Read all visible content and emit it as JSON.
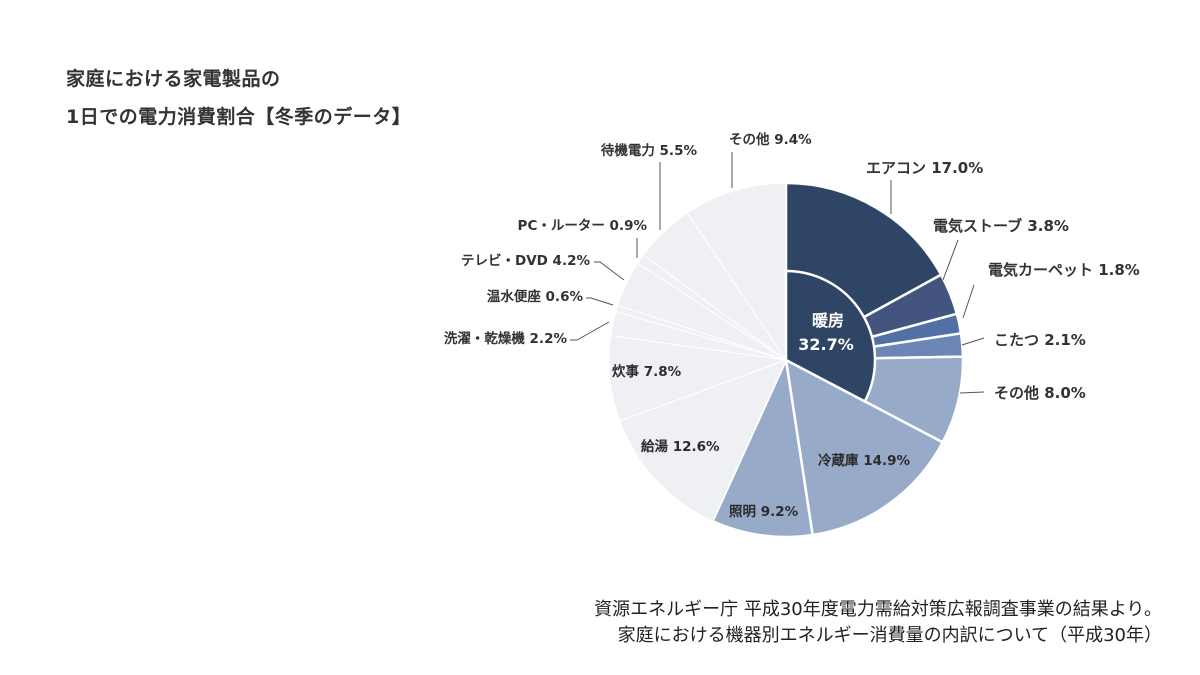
{
  "title": {
    "line1": "家庭における家電製品の",
    "line2": "1日での電力消費割合【冬季のデータ】"
  },
  "source": {
    "line1": "資源エネルギー庁 平成30年度電力需給対策広報調査事業の結果より。",
    "line2": "家庭における機器別エネルギー消費量の内訳について（平成30年）"
  },
  "colors": {
    "aircon": "#2f4566",
    "stove": "#43557f",
    "carpet": "#5370a4",
    "kotatsu": "#6c87b5",
    "heating_other": "#97aac8",
    "mid": "#97abc9",
    "light": "#eef0f4",
    "center": "#2f4566",
    "leader": "#555555"
  },
  "chart_data": {
    "type": "pie",
    "title": "家庭における家電製品の1日での電力消費割合【冬季のデータ】",
    "unit": "%",
    "center_group": {
      "label": "暖房",
      "value": 32.7
    },
    "categories": [
      "エアコン",
      "電気ストーブ",
      "電気カーペット",
      "こたつ",
      "その他",
      "冷蔵庫",
      "照明",
      "給湯",
      "炊事",
      "洗濯・乾燥機",
      "温水便座",
      "テレビ・DVD",
      "PC・ルーター",
      "待機電力",
      "その他"
    ],
    "values": [
      17.0,
      3.8,
      1.8,
      2.1,
      8.0,
      14.9,
      9.2,
      12.6,
      7.8,
      2.2,
      0.6,
      4.2,
      0.9,
      5.5,
      9.4
    ],
    "groups": [
      "暖房",
      "暖房",
      "暖房",
      "暖房",
      "暖房",
      "",
      "",
      "",
      "",
      "",
      "",
      "",
      "",
      "",
      ""
    ],
    "labels": [
      "エアコン 17.0%",
      "電気ストーブ 3.8%",
      "電気カーペット 1.8%",
      "こたつ 2.1%",
      "その他 8.0%",
      "冷蔵庫 14.9%",
      "照明 9.2%",
      "給湯 12.6%",
      "炊事 7.8%",
      "洗濯・乾燥機 2.2%",
      "温水便座 0.6%",
      "テレビ・DVD 4.2%",
      "PC・ルーター 0.9%",
      "待機電力 5.5%",
      "その他 9.4%"
    ],
    "center_label": {
      "name": "暖房",
      "value": "32.7%"
    },
    "source": "資源エネルギー庁 平成30年度電力需給対策広報調査事業の結果より。家庭における機器別エネルギー消費量の内訳について（平成30年）"
  }
}
